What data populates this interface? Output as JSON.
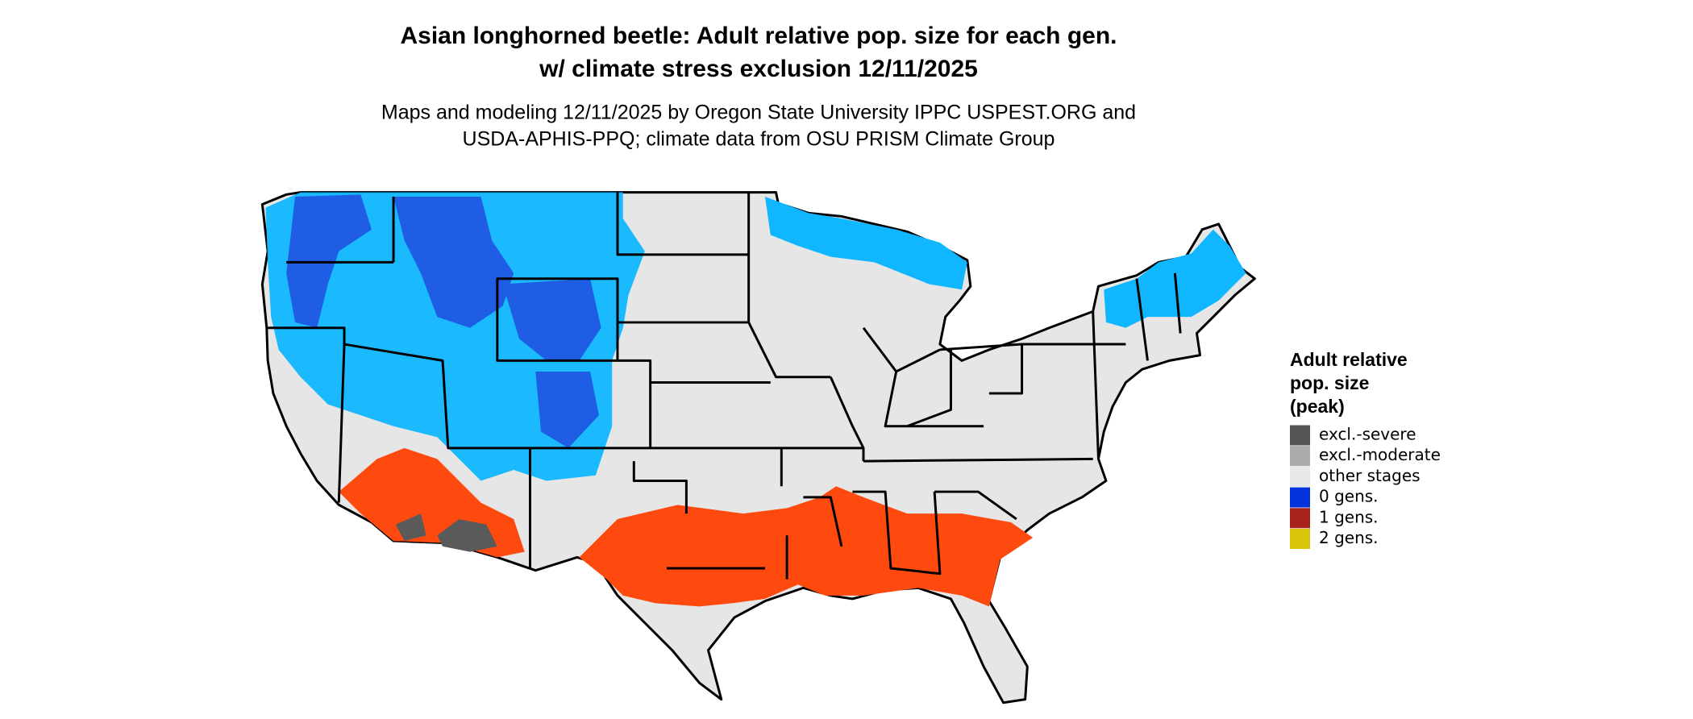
{
  "title": [
    "Asian longhorned beetle: Adult relative pop. size for each gen.",
    "w/ climate stress exclusion 12/11/2025"
  ],
  "subtitle": [
    "Maps and modeling 12/11/2025 by Oregon State University IPPC USPEST.ORG and",
    "USDA-APHIS-PPQ; climate data from OSU PRISM Climate Group"
  ],
  "legend": {
    "title": [
      "Adult relative",
      "pop. size",
      "(peak)"
    ],
    "items": [
      {
        "label": "excl.-severe",
        "color": "#555555"
      },
      {
        "label": "excl.-moderate",
        "color": "#ababab"
      },
      {
        "label": "other stages",
        "color": "#e8e8ea"
      },
      {
        "label": "0 gens.",
        "color": "#0433dd"
      },
      {
        "label": "1 gens.",
        "color": "#a8241a"
      },
      {
        "label": "2 gens.",
        "color": "#d8c40a"
      }
    ]
  }
}
